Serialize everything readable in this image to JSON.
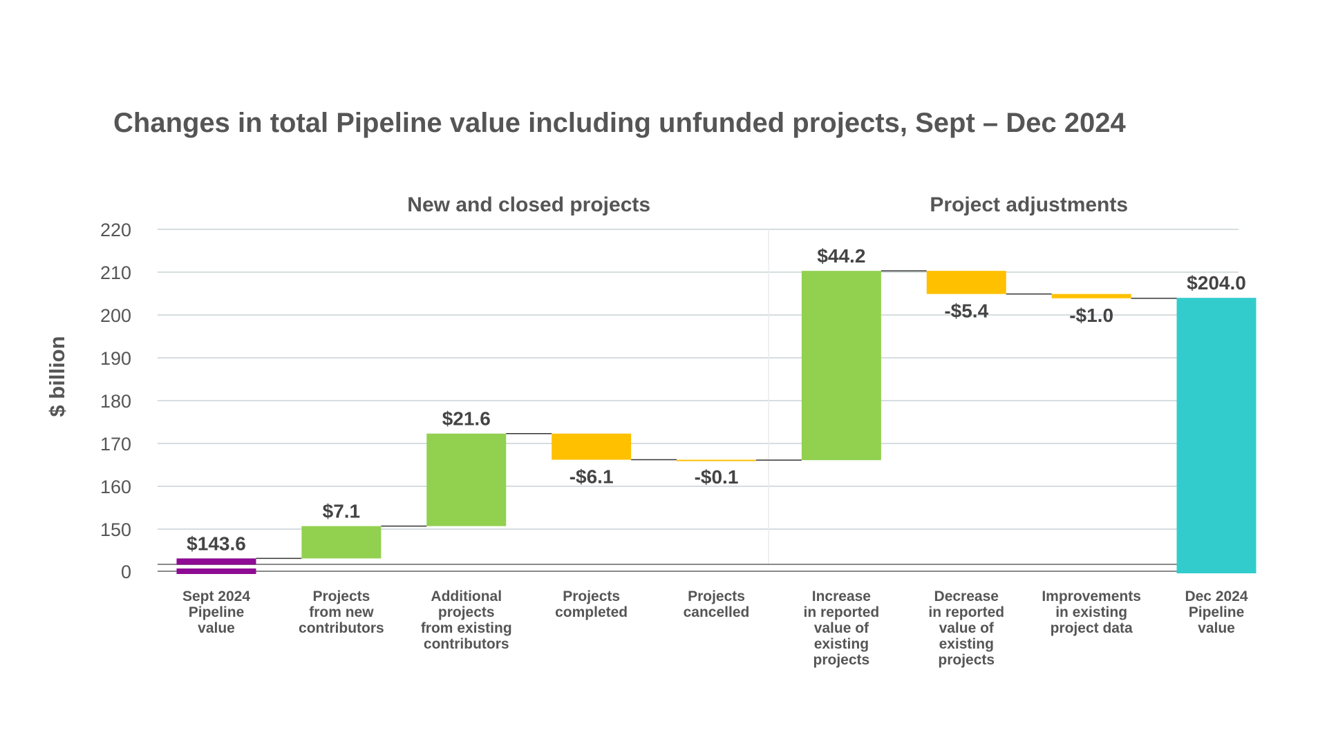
{
  "chart_data": {
    "type": "bar",
    "subtype": "waterfall",
    "title": "Changes in total Pipeline value including unfunded projects, Sept – Dec 2024",
    "ylabel": "$ billion",
    "xlabel": "",
    "ylim": [
      0,
      220
    ],
    "axis_break": true,
    "y_ticks": [
      "0",
      "150",
      "160",
      "170",
      "180",
      "190",
      "200",
      "210",
      "220"
    ],
    "grid": true,
    "groups": [
      {
        "label": "New and closed projects",
        "span": [
          1,
          4
        ]
      },
      {
        "label": "Project adjustments",
        "span": [
          5,
          8
        ]
      }
    ],
    "categories": [
      [
        "Sept 2024",
        "Pipeline",
        "value"
      ],
      [
        "Projects",
        "from new",
        "contributors"
      ],
      [
        "Additional",
        "projects",
        "from existing",
        "contributors"
      ],
      [
        "Projects",
        "completed"
      ],
      [
        "Projects",
        "cancelled"
      ],
      [
        "Increase",
        "in reported",
        "value of",
        "existing",
        "projects"
      ],
      [
        "Decrease",
        "in reported",
        "value of",
        "existing",
        "projects"
      ],
      [
        "Improvements",
        "in existing",
        "project data"
      ],
      [
        "Dec 2024",
        "Pipeline",
        "value"
      ]
    ],
    "values": [
      143.6,
      7.1,
      21.6,
      -6.1,
      -0.1,
      44.2,
      -5.4,
      -1.0,
      204.0
    ],
    "kinds": [
      "total",
      "delta",
      "delta",
      "delta",
      "delta",
      "delta",
      "delta",
      "delta",
      "total"
    ],
    "data_labels": [
      "$143.6",
      "$7.1",
      "$21.6",
      "-$6.1",
      "-$0.1",
      "$44.2",
      "-$5.4",
      "-$1.0",
      "$204.0"
    ],
    "colors": {
      "start": "#8E0B93",
      "increase": "#92D050",
      "decrease": "#FFC000",
      "end": "#33CCCC",
      "grid": "#D5DDE0",
      "text": "#555555",
      "connector": "#333333"
    }
  }
}
